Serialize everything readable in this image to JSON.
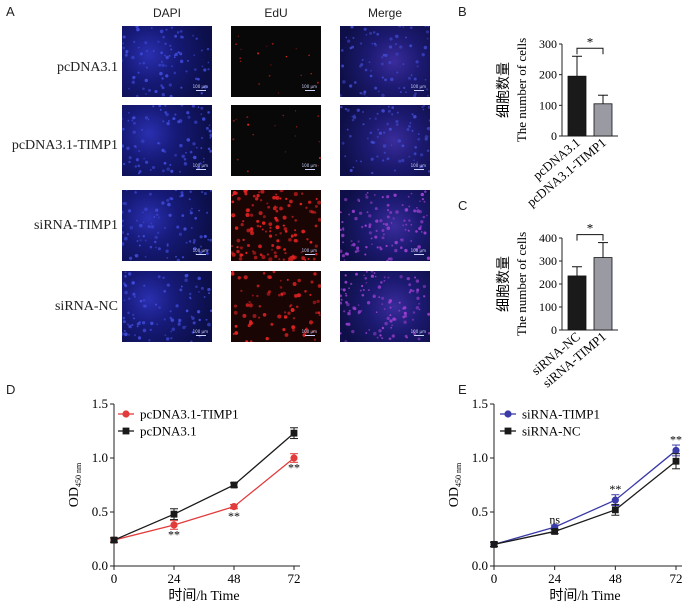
{
  "panel_letters": [
    "A",
    "B",
    "C",
    "D",
    "E"
  ],
  "panelA": {
    "columns": [
      "DAPI",
      "EdU",
      "Merge"
    ],
    "rows": [
      "pcDNA3.1",
      "pcDNA3.1-TIMP1",
      "siRNA-TIMP1",
      "siRNA-NC"
    ],
    "scale_bar_text": "100 μm"
  },
  "chart_data": [
    {
      "type": "bar",
      "id": "B",
      "categories": [
        "pcDNA3.1",
        "pcDNA3.1-TIMP1"
      ],
      "values": [
        195,
        105
      ],
      "errors": [
        65,
        28
      ],
      "colors": [
        "#1a1a1a",
        "#9a9aa3"
      ],
      "ylabel_cn": "细胞数量",
      "ylabel": "The number of cells",
      "ylim": [
        0,
        300
      ],
      "yticks": [
        0,
        100,
        200,
        300
      ],
      "significance": "*"
    },
    {
      "type": "bar",
      "id": "C",
      "categories": [
        "siRNA-NC",
        "siRNA-TIMP1"
      ],
      "values": [
        235,
        315
      ],
      "errors": [
        40,
        65
      ],
      "colors": [
        "#1a1a1a",
        "#9a9aa3"
      ],
      "ylabel_cn": "细胞数量",
      "ylabel": "The number of cells",
      "ylim": [
        0,
        400
      ],
      "yticks": [
        0,
        100,
        200,
        300,
        400
      ],
      "significance": "*"
    },
    {
      "type": "line",
      "id": "D",
      "x": [
        0,
        24,
        48,
        72
      ],
      "xlabel": "时间/h Time",
      "ylabel": "OD",
      "ylabel_sub": "450 nm",
      "ylim": [
        0,
        1.5
      ],
      "yticks": [
        "0.0",
        "0.5",
        "1.0",
        "1.5"
      ],
      "xticks": [
        "0",
        "24",
        "48",
        "72"
      ],
      "series": [
        {
          "name": "pcDNA3.1-TIMP1",
          "values": [
            0.24,
            0.38,
            0.55,
            1.0
          ],
          "errors": [
            0.02,
            0.04,
            0.02,
            0.04
          ],
          "color": "#e23b3b",
          "marker": "circle"
        },
        {
          "name": "pcDNA3.1",
          "values": [
            0.24,
            0.48,
            0.75,
            1.23
          ],
          "errors": [
            0.02,
            0.05,
            0.02,
            0.05
          ],
          "color": "#1a1a1a",
          "marker": "square"
        }
      ],
      "annotations": [
        {
          "x": 24,
          "y": 0.3,
          "text": "**"
        },
        {
          "x": 48,
          "y": 0.47,
          "text": "**"
        },
        {
          "x": 72,
          "y": 0.92,
          "text": "**"
        }
      ]
    },
    {
      "type": "line",
      "id": "E",
      "x": [
        0,
        24,
        48,
        72
      ],
      "xlabel": "时间/h Time",
      "ylabel": "OD",
      "ylabel_sub": "450 nm",
      "ylim": [
        0,
        1.5
      ],
      "yticks": [
        "0.0",
        "0.5",
        "1.0",
        "1.5"
      ],
      "xticks": [
        "0",
        "24",
        "48",
        "72"
      ],
      "series": [
        {
          "name": "siRNA-TIMP1",
          "values": [
            0.2,
            0.36,
            0.61,
            1.07
          ],
          "errors": [
            0.02,
            0.02,
            0.05,
            0.05
          ],
          "color": "#3a3aa8",
          "marker": "circle"
        },
        {
          "name": "siRNA-NC",
          "values": [
            0.2,
            0.32,
            0.52,
            0.97
          ],
          "errors": [
            0.02,
            0.02,
            0.05,
            0.07
          ],
          "color": "#1a1a1a",
          "marker": "square"
        }
      ],
      "annotations": [
        {
          "x": 24,
          "y": 0.44,
          "text": "ns"
        },
        {
          "x": 48,
          "y": 0.72,
          "text": "**"
        },
        {
          "x": 72,
          "y": 1.18,
          "text": "**"
        }
      ]
    }
  ]
}
